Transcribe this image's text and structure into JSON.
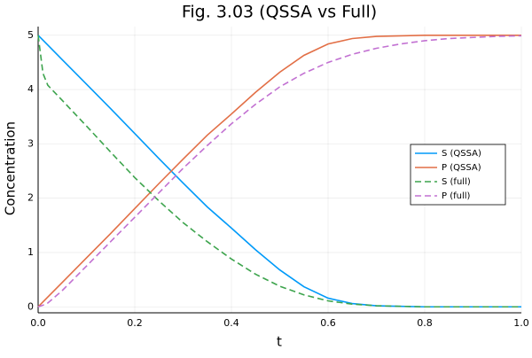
{
  "chart_data": {
    "type": "line",
    "title": "Fig. 3.03 (QSSA vs Full)",
    "x_label": "t",
    "y_label": "Concentration",
    "x": [
      0,
      0.01,
      0.02,
      0.05,
      0.1,
      0.15,
      0.2,
      0.25,
      0.3,
      0.35,
      0.4,
      0.45,
      0.5,
      0.55,
      0.6,
      0.65,
      0.7,
      0.75,
      0.8,
      0.85,
      0.9,
      0.95,
      1.0
    ],
    "series": [
      {
        "name": "S (QSSA)",
        "color": "#009af9",
        "linestyle": "solid",
        "values": [
          5,
          4.91,
          4.82,
          4.55,
          4.1,
          3.65,
          3.19,
          2.73,
          2.28,
          1.84,
          1.45,
          1.05,
          0.68,
          0.37,
          0.16,
          0.06,
          0.02,
          0.01,
          0,
          0,
          0,
          0,
          0
        ]
      },
      {
        "name": "P (QSSA)",
        "color": "#e26f46",
        "linestyle": "solid",
        "values": [
          0,
          0.09,
          0.18,
          0.45,
          0.9,
          1.35,
          1.81,
          2.27,
          2.72,
          3.16,
          3.55,
          3.95,
          4.32,
          4.63,
          4.84,
          4.94,
          4.98,
          4.99,
          5,
          5,
          5,
          5,
          5
        ]
      },
      {
        "name": "S (full)",
        "color": "#3da44d",
        "linestyle": "dash",
        "values": [
          5,
          4.3,
          4.08,
          3.8,
          3.33,
          2.85,
          2.38,
          1.95,
          1.55,
          1.2,
          0.88,
          0.6,
          0.38,
          0.22,
          0.11,
          0.05,
          0.02,
          0.01,
          0,
          0,
          0,
          0,
          0
        ]
      },
      {
        "name": "P (full)",
        "color": "#c271d2",
        "linestyle": "dash",
        "values": [
          0,
          0.03,
          0.07,
          0.3,
          0.75,
          1.2,
          1.65,
          2.1,
          2.55,
          2.97,
          3.37,
          3.73,
          4.05,
          4.3,
          4.5,
          4.65,
          4.76,
          4.84,
          4.9,
          4.94,
          4.96,
          4.98,
          4.99
        ]
      }
    ],
    "xlim": [
      0,
      1
    ],
    "xticks": [
      {
        "value": 0,
        "label": "0.0"
      },
      0.2,
      0.4,
      0.6,
      0.8,
      {
        "value": 1,
        "label": "1.0"
      }
    ],
    "ylim": [
      -0.11,
      5.16
    ],
    "yticks": [
      0,
      1,
      2,
      3,
      4,
      5
    ],
    "grid": true,
    "legend": "right"
  }
}
